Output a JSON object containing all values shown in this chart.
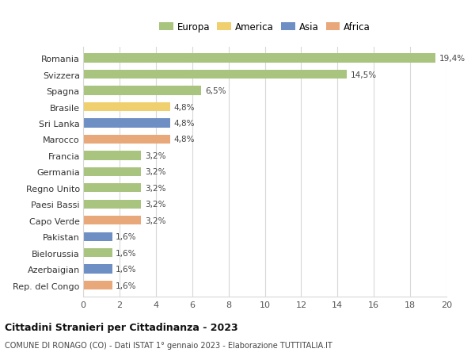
{
  "countries": [
    "Romania",
    "Svizzera",
    "Spagna",
    "Brasile",
    "Sri Lanka",
    "Marocco",
    "Francia",
    "Germania",
    "Regno Unito",
    "Paesi Bassi",
    "Capo Verde",
    "Pakistan",
    "Bielorussia",
    "Azerbaigian",
    "Rep. del Congo"
  ],
  "values": [
    19.4,
    14.5,
    6.5,
    4.8,
    4.8,
    4.8,
    3.2,
    3.2,
    3.2,
    3.2,
    3.2,
    1.6,
    1.6,
    1.6,
    1.6
  ],
  "labels": [
    "19,4%",
    "14,5%",
    "6,5%",
    "4,8%",
    "4,8%",
    "4,8%",
    "3,2%",
    "3,2%",
    "3,2%",
    "3,2%",
    "3,2%",
    "1,6%",
    "1,6%",
    "1,6%",
    "1,6%"
  ],
  "colors": [
    "#a8c47e",
    "#a8c47e",
    "#a8c47e",
    "#f0cf6e",
    "#6e8fc4",
    "#e8a87a",
    "#a8c47e",
    "#a8c47e",
    "#a8c47e",
    "#a8c47e",
    "#e8a87a",
    "#6e8fc4",
    "#a8c47e",
    "#6e8fc4",
    "#e8a87a"
  ],
  "legend_labels": [
    "Europa",
    "America",
    "Asia",
    "Africa"
  ],
  "legend_colors": [
    "#a8c47e",
    "#f0cf6e",
    "#6e8fc4",
    "#e8a87a"
  ],
  "title": "Cittadini Stranieri per Cittadinanza - 2023",
  "subtitle": "COMUNE DI RONAGO (CO) - Dati ISTAT 1° gennaio 2023 - Elaborazione TUTTITALIA.IT",
  "xlim": [
    0,
    20
  ],
  "xticks": [
    0,
    2,
    4,
    6,
    8,
    10,
    12,
    14,
    16,
    18,
    20
  ],
  "background_color": "#ffffff",
  "grid_color": "#d8d8d8",
  "bar_height": 0.55
}
